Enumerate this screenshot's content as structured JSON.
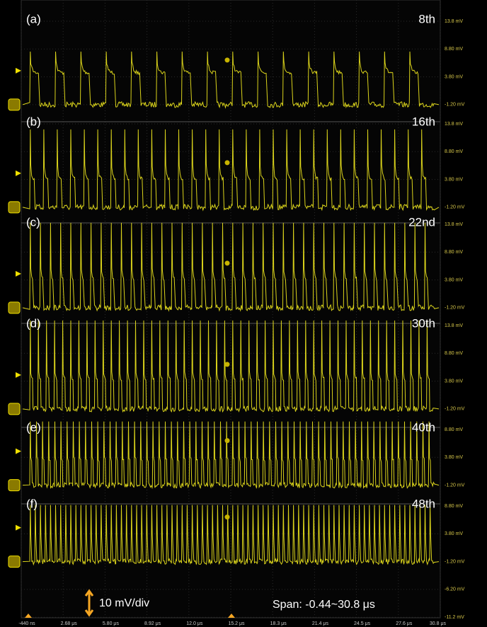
{
  "panels": [
    {
      "label": "(a)",
      "harmonic": "8th",
      "y_labels": [
        "13.8 mV",
        "8.80 mV",
        "3.80 mV",
        "-1.20 mV"
      ]
    },
    {
      "label": "(b)",
      "harmonic": "16th",
      "y_labels": [
        "13.8 mV",
        "8.80 mV",
        "3.80 mV",
        "-1.20 mV"
      ]
    },
    {
      "label": "(c)",
      "harmonic": "22nd",
      "y_labels": [
        "13.8 mV",
        "8.80 mV",
        "3.80 mV",
        "-1.20 mV"
      ]
    },
    {
      "label": "(d)",
      "harmonic": "30th",
      "y_labels": [
        "13.8 mV",
        "8.80 mV",
        "3.80 mV",
        "-1.20 mV"
      ]
    },
    {
      "label": "(e)",
      "harmonic": "40th",
      "y_labels": [
        "8.80 mV",
        "3.80 mV",
        "-1.20 mV"
      ]
    },
    {
      "label": "(f)",
      "harmonic": "48th",
      "y_labels": [
        "8.80 mV",
        "3.80 mV",
        "-1.20 mV",
        "-6.20 mV",
        "-11.2 mV"
      ]
    }
  ],
  "x_labels": [
    "-440 ns",
    "2.68 μs",
    "5.80 μs",
    "8.92 μs",
    "12.0 μs",
    "15.2 μs",
    "18.3 μs",
    "21.4 μs",
    "24.5 μs",
    "27.6 μs",
    "30.8 μs"
  ],
  "scale_label": "10 mV/div",
  "span_label": "Span: -0.44~30.8 μs"
}
